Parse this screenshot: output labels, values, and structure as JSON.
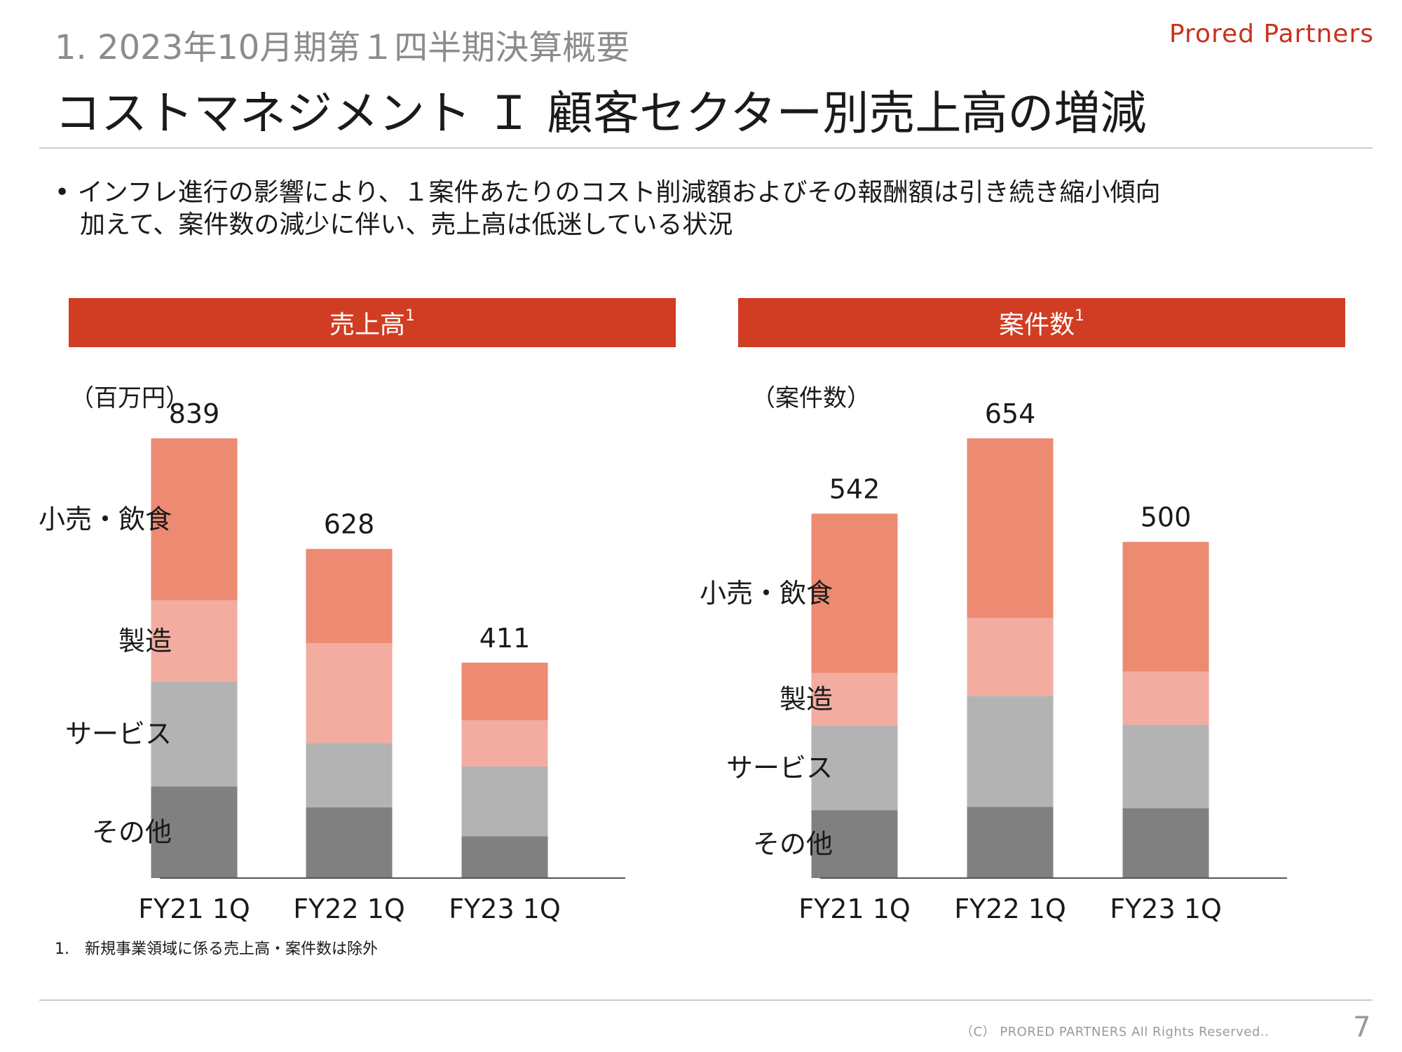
{
  "header": {
    "section": "1. 2023年10月期第１四半期決算概要",
    "brand": "Prored Partners",
    "title": "コストマネジメント Ｉ 顧客セクター別売上高の増減"
  },
  "bullets": [
    "•  インフレ進行の影響により、１案件あたりのコスト削減額およびその報酬額は引き続き縮小傾向",
    "加えて、案件数の減少に伴い、売上高は低迷している状況"
  ],
  "panels": {
    "left": {
      "label": "売上高",
      "sup": "1",
      "unit": "（百万円）"
    },
    "right": {
      "label": "案件数",
      "sup": "1",
      "unit": "（案件数）"
    }
  },
  "footnote": "1.　新規事業領域に係る売上高・案件数は除外",
  "footer": {
    "copyright": "（C）  PRORED PARTNERS All Rights Reserved..",
    "page": "7"
  },
  "colors": {
    "retail": "#ec8a72",
    "manufacturing": "#f2aca0",
    "service": "#b3b3b3",
    "other": "#808080",
    "header_bar": "#d03d22"
  },
  "chart_data": [
    {
      "type": "bar",
      "stacked": true,
      "title": "売上高",
      "ylabel": "（百万円）",
      "categories": [
        "FY21 1Q",
        "FY22 1Q",
        "FY23 1Q"
      ],
      "totals": [
        839,
        628,
        411
      ],
      "series": [
        {
          "name": "その他",
          "values": [
            175,
            135,
            80
          ]
        },
        {
          "name": "サービス",
          "values": [
            200,
            123,
            133
          ]
        },
        {
          "name": "製造",
          "values": [
            155,
            190,
            88
          ]
        },
        {
          "name": "小売・飲食",
          "values": [
            309,
            180,
            110
          ]
        }
      ],
      "ylim": [
        0,
        839
      ]
    },
    {
      "type": "bar",
      "stacked": true,
      "title": "案件数",
      "ylabel": "（案件数）",
      "categories": [
        "FY21 1Q",
        "FY22 1Q",
        "FY23 1Q"
      ],
      "totals": [
        542,
        654,
        500
      ],
      "series": [
        {
          "name": "その他",
          "values": [
            101,
            106,
            104
          ]
        },
        {
          "name": "サービス",
          "values": [
            126,
            165,
            124
          ]
        },
        {
          "name": "製造",
          "values": [
            78,
            116,
            79
          ]
        },
        {
          "name": "小売・飲食",
          "values": [
            237,
            267,
            193
          ]
        }
      ],
      "ylim": [
        0,
        654
      ]
    }
  ]
}
